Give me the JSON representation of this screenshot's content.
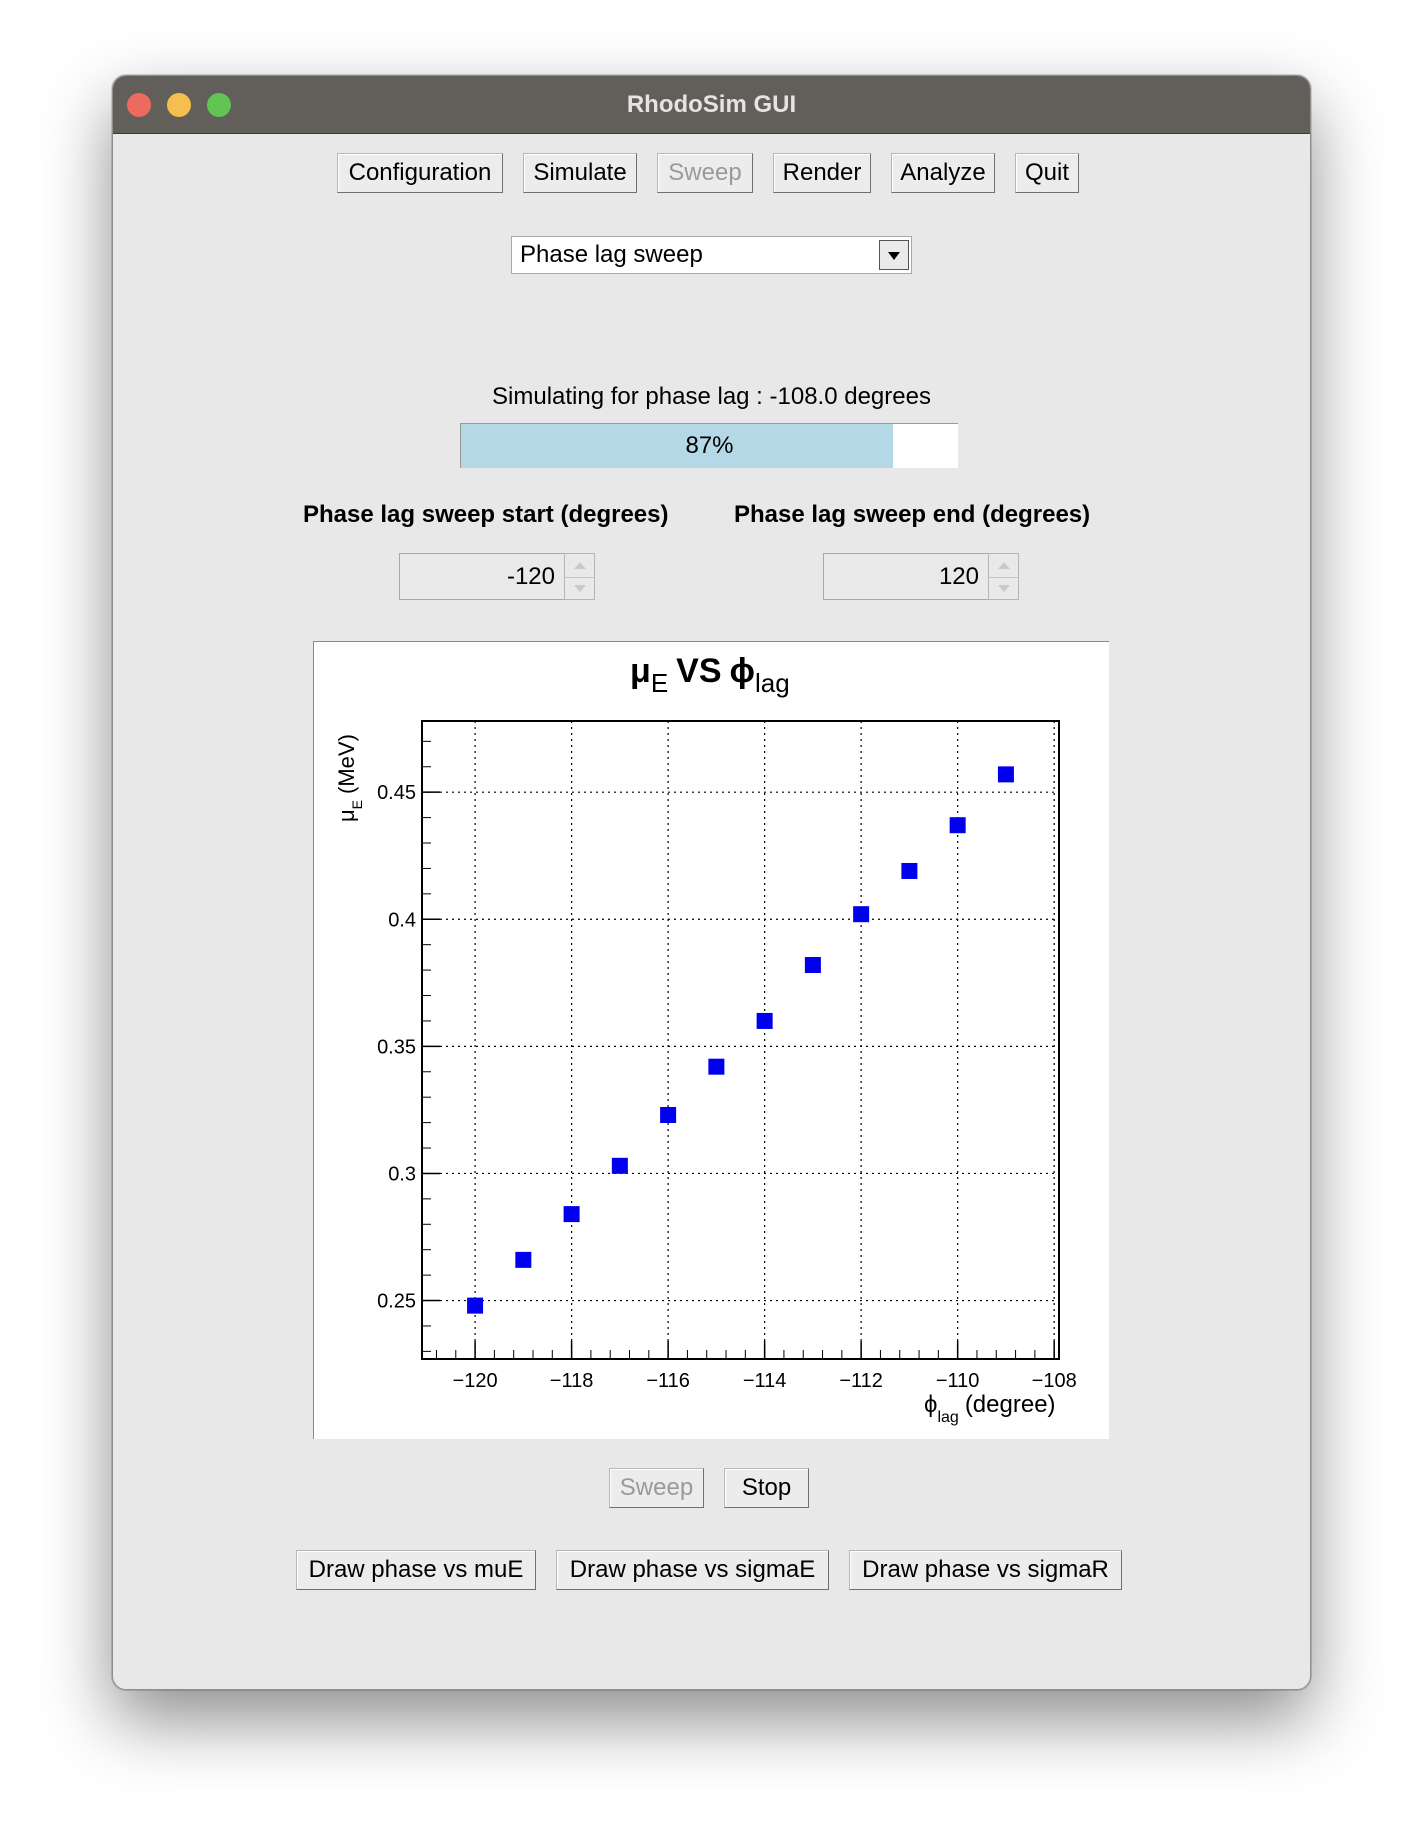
{
  "window": {
    "title": "RhodoSim GUI",
    "traffic_lights": {
      "close": "#ed6a5e",
      "minimize": "#f5bf4f",
      "maximize": "#61c554"
    }
  },
  "toolbar": {
    "configuration": "Configuration",
    "simulate": "Simulate",
    "sweep": "Sweep",
    "render": "Render",
    "analyze": "Analyze",
    "quit": "Quit"
  },
  "mode_select": {
    "value": "Phase lag sweep"
  },
  "status": {
    "text": "Simulating for phase lag : -108.0 degrees"
  },
  "progress": {
    "percent": 87,
    "label": "87%",
    "fill_color": "#b4d8e6"
  },
  "sweep_range": {
    "start_label": "Phase lag sweep start (degrees)",
    "start_value": "-120",
    "end_label": "Phase lag sweep end (degrees)",
    "end_value": "120"
  },
  "chart_data": {
    "type": "scatter",
    "title_main": "μ",
    "title_main_sub": "E",
    "title_vs": "VS",
    "title_second": "ϕ",
    "title_second_sub": "lag",
    "xlabel_symbol": "ϕ",
    "xlabel_sub": "lag",
    "xlabel_unit": "(degree)",
    "ylabel_symbol": "μ",
    "ylabel_sub": "E",
    "ylabel_unit": "(MeV)",
    "xlim": [
      -121.1,
      -107.9
    ],
    "ylim": [
      0.227,
      0.478
    ],
    "x_ticks": [
      -120,
      -118,
      -116,
      -114,
      -112,
      -110,
      -108
    ],
    "x_tick_labels": [
      "−120",
      "−118",
      "−116",
      "−114",
      "−112",
      "−110",
      "−108"
    ],
    "y_ticks": [
      0.25,
      0.3,
      0.35,
      0.4,
      0.45
    ],
    "y_tick_labels": [
      "0.25",
      "0.3",
      "0.35",
      "0.4",
      "0.45"
    ],
    "grid": true,
    "marker_color": "#0000ee",
    "marker": "square",
    "x": [
      -120,
      -119,
      -118,
      -117,
      -116,
      -115,
      -114,
      -113,
      -112,
      -111,
      -110,
      -109
    ],
    "y": [
      0.248,
      0.266,
      0.284,
      0.303,
      0.323,
      0.342,
      0.36,
      0.382,
      0.402,
      0.419,
      0.437,
      0.457
    ]
  },
  "actions": {
    "sweep": "Sweep",
    "stop": "Stop"
  },
  "draw_buttons": {
    "phase_vs_mue": "Draw phase vs muE",
    "phase_vs_sigmae": "Draw phase vs sigmaE",
    "phase_vs_sigmar": "Draw phase vs sigmaR"
  }
}
